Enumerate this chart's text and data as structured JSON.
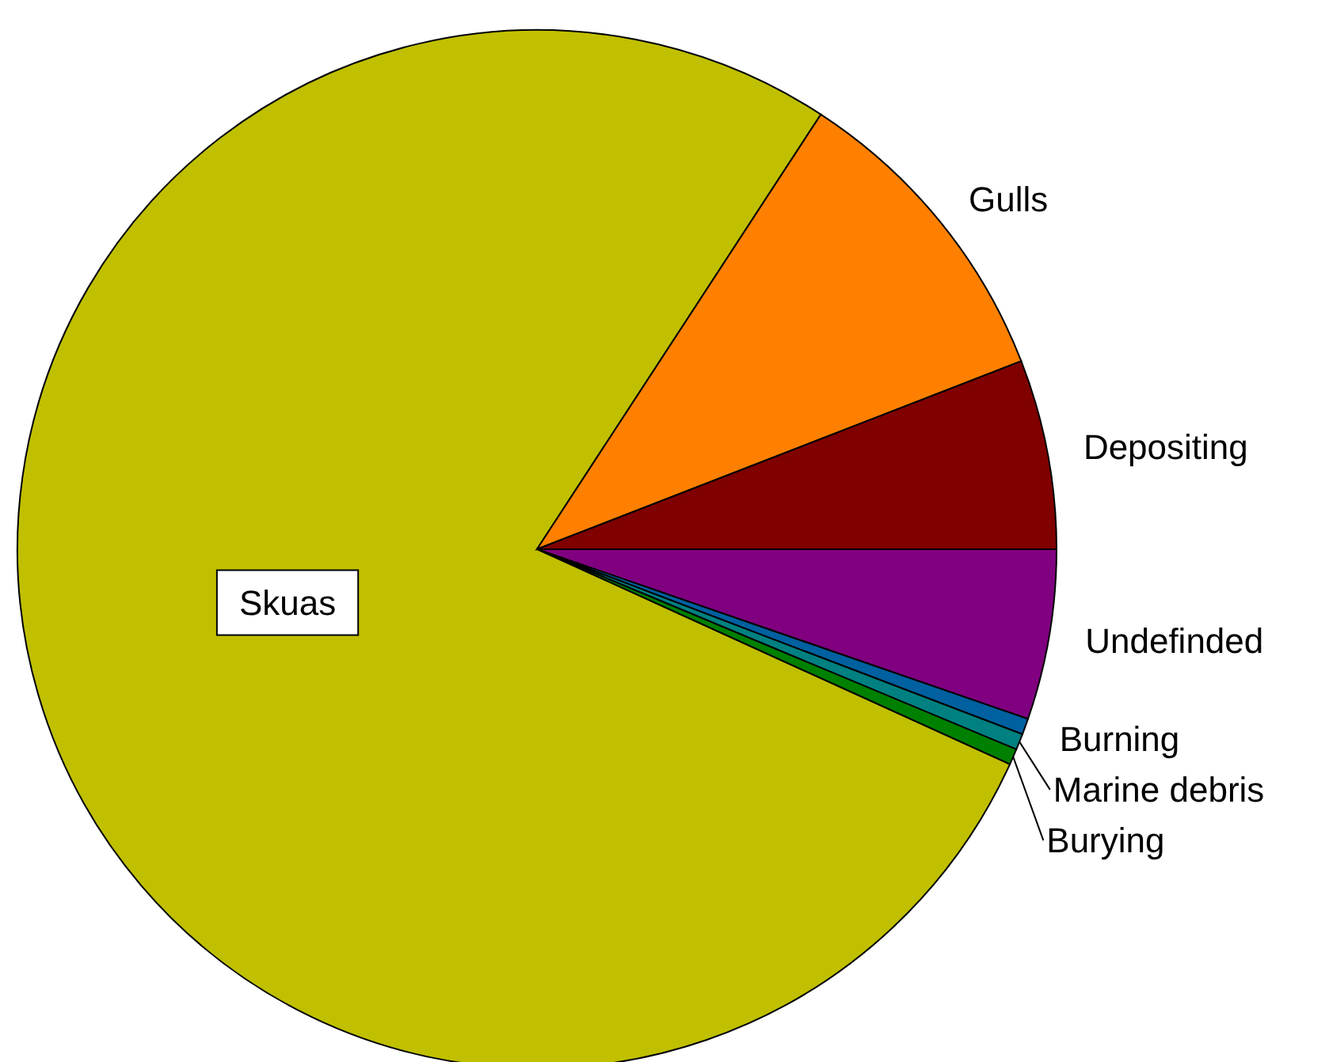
{
  "chart_data": {
    "type": "pie",
    "categories": [
      "Undefinded",
      "Burning",
      "Marine debris",
      "Burying",
      "Skuas",
      "Gulls",
      "Depositing"
    ],
    "values": [
      5.3,
      0.5,
      0.5,
      0.5,
      77.4,
      9.9,
      5.9
    ],
    "colors": [
      "#800080",
      "#0060a0",
      "#008080",
      "#008000",
      "#c0c000",
      "#ff8000",
      "#800000"
    ]
  }
}
